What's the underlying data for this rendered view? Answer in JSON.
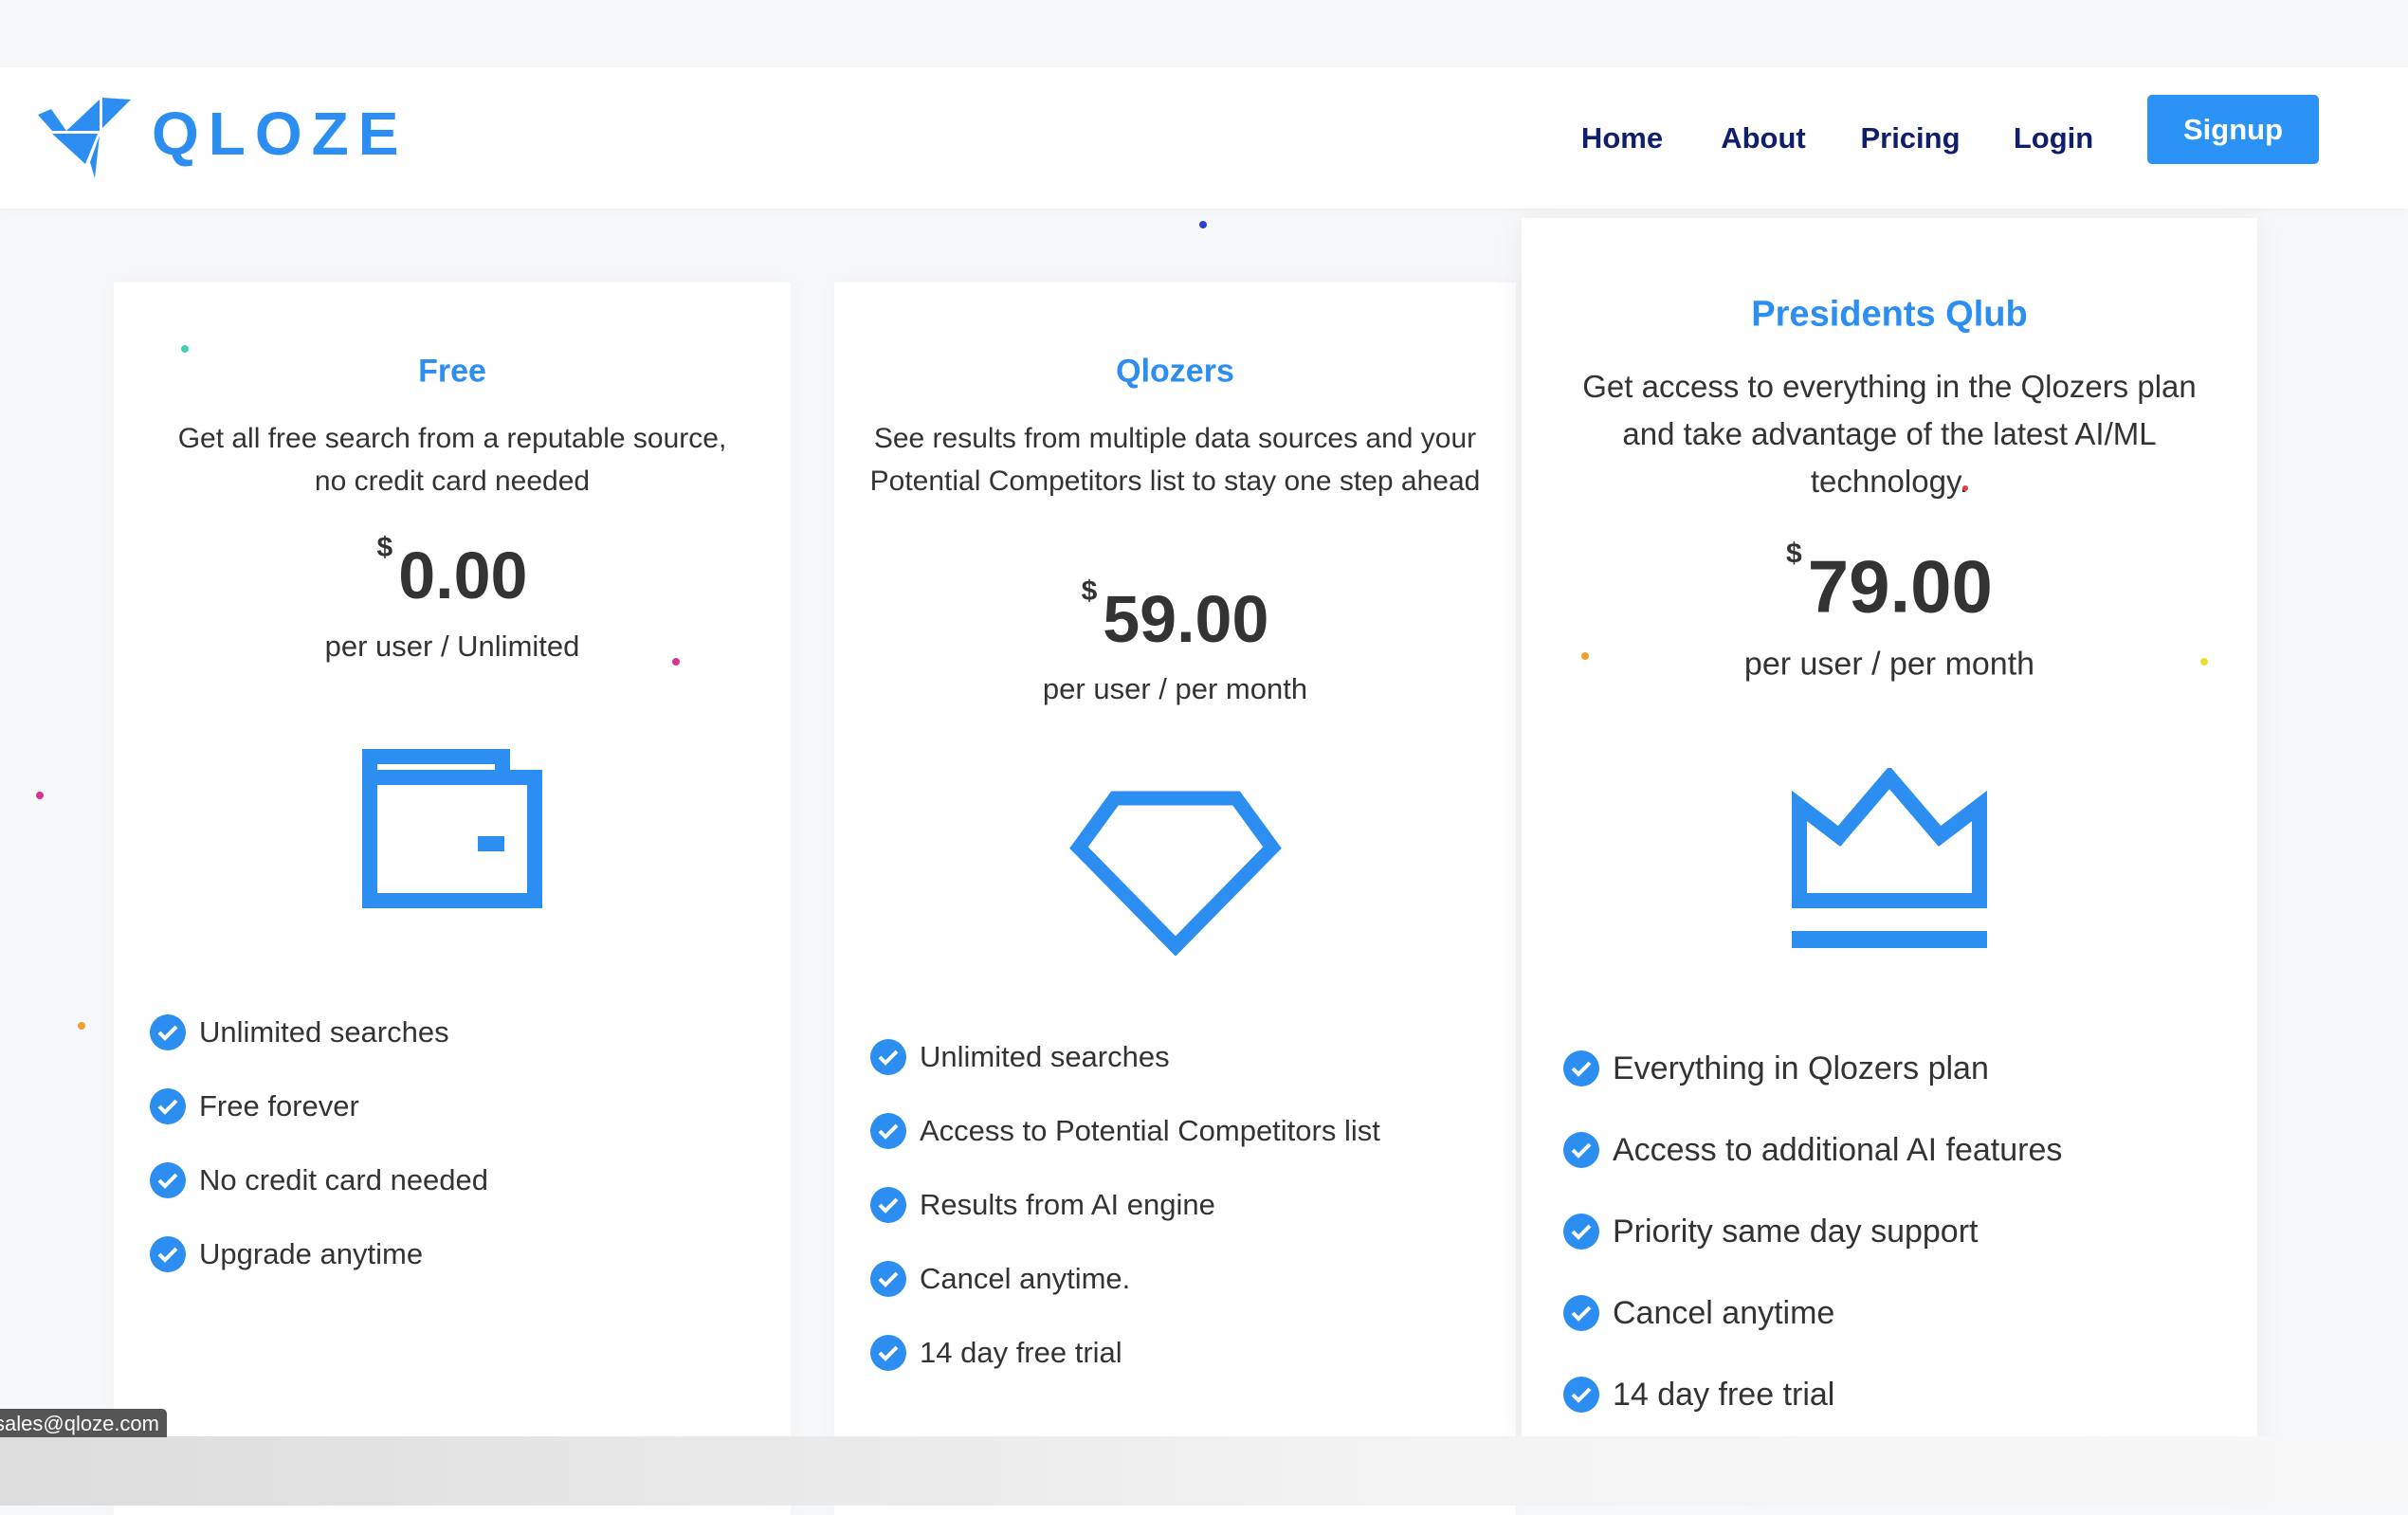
{
  "brand": {
    "name": "QLOZE",
    "color": "#2b8ef0"
  },
  "nav": {
    "items": [
      "Home",
      "About",
      "Pricing",
      "Login"
    ],
    "signup": "Signup"
  },
  "plans": [
    {
      "name": "Free",
      "description": "Get all free search from a reputable source, no credit card needed",
      "currency": "$",
      "price": "0.00",
      "period": "per user / Unlimited",
      "icon": "wallet-icon",
      "features": [
        "Unlimited searches",
        "Free forever",
        "No credit card needed",
        "Upgrade anytime"
      ]
    },
    {
      "name": "Qlozers",
      "description": "See results from multiple data sources and your Potential Competitors list to stay one step ahead",
      "currency": "$",
      "price": "59.00",
      "period": "per user / per month",
      "icon": "diamond-icon",
      "features": [
        "Unlimited searches",
        "Access to Potential Competitors list",
        "Results from AI engine",
        "Cancel anytime.",
        "14 day free trial"
      ]
    },
    {
      "name": "Presidents Qlub",
      "description": "Get access to everything in the Qlozers plan and take advantage of the latest AI/ML technology.",
      "currency": "$",
      "price": "79.00",
      "period": "per user / per month",
      "icon": "crown-icon",
      "features": [
        "Everything in Qlozers plan",
        "Access to additional AI features",
        "Priority same day support",
        "Cancel anytime",
        "14 day free trial"
      ]
    }
  ],
  "status_tooltip": "sales@qloze.com"
}
